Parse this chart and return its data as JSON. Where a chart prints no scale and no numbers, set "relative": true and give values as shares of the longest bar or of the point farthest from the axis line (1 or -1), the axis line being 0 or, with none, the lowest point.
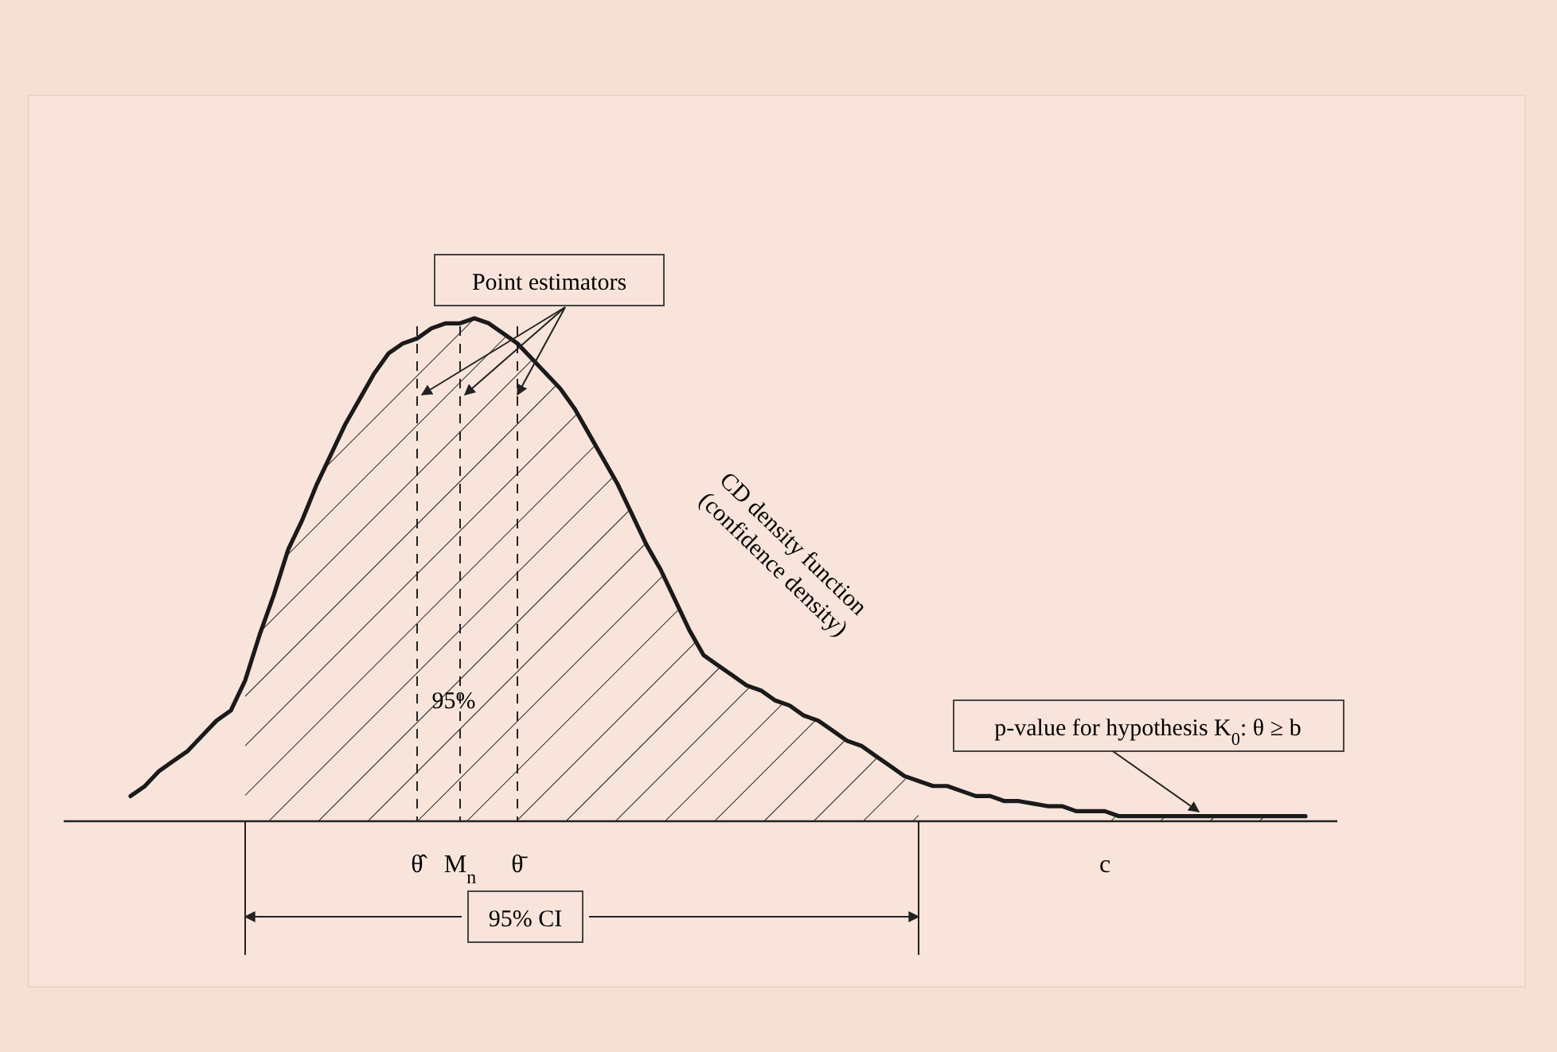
{
  "chart_data": {
    "type": "line",
    "relative": true,
    "categories": [
      null,
      null,
      null,
      null,
      null,
      null,
      null,
      null,
      null,
      null,
      null,
      null,
      null,
      null,
      null,
      null,
      null,
      null,
      null,
      null,
      "θ̂",
      null,
      null,
      "M$_{n}$",
      null,
      null,
      null,
      "θ̄",
      null,
      null,
      null,
      null,
      null,
      null,
      null,
      null,
      null,
      null,
      null,
      null,
      null,
      null,
      null,
      null,
      null,
      null,
      null,
      null,
      null,
      null,
      null,
      null,
      null,
      null,
      null,
      null,
      null,
      null,
      null,
      null,
      null,
      null,
      null,
      null,
      null,
      null,
      null,
      null,
      "c",
      null,
      null,
      null,
      null,
      null,
      null,
      null,
      null,
      null,
      null,
      null,
      null,
      null,
      null
    ],
    "series": [
      {
        "color": "#1a1a1a",
        "values": [
          0.05,
          0.07,
          0.1,
          0.12,
          0.14,
          0.17,
          0.2,
          0.22,
          0.28,
          0.37,
          0.45,
          0.54,
          0.6,
          0.67,
          0.73,
          0.79,
          0.84,
          0.89,
          0.93,
          0.95,
          0.96,
          0.98,
          0.99,
          0.99,
          1,
          0.99,
          0.97,
          0.95,
          0.92,
          0.89,
          0.86,
          0.82,
          0.77,
          0.72,
          0.67,
          0.61,
          0.55,
          0.5,
          0.44,
          0.38,
          0.33,
          0.31,
          0.29,
          0.27,
          0.26,
          0.24,
          0.23,
          0.21,
          0.2,
          0.18,
          0.16,
          0.15,
          0.13,
          0.11,
          0.09,
          0.08,
          0.07,
          0.07,
          0.06,
          0.05,
          0.05,
          0.04,
          0.04,
          0.035,
          0.03,
          0.03,
          0.02,
          0.02,
          0.02,
          0.01,
          0.01,
          0.01,
          0.01,
          0.01,
          0.01,
          0.01,
          0.01,
          0.01,
          0.01,
          0.01,
          0.01,
          0.01,
          0.01
        ]
      },
      {
        "type": "area",
        "color": "#222222",
        "values": [
          null,
          null,
          null,
          null,
          null,
          null,
          null,
          null,
          0.28,
          0.37,
          0.45,
          0.54,
          0.6,
          0.67,
          0.73,
          0.79,
          0.84,
          0.89,
          0.93,
          0.95,
          0.96,
          0.98,
          0.99,
          0.99,
          1,
          0.99,
          0.97,
          0.95,
          0.92,
          0.89,
          0.86,
          0.82,
          0.77,
          0.72,
          0.67,
          0.61,
          0.55,
          0.5,
          0.44,
          0.38,
          0.33,
          0.31,
          0.29,
          0.27,
          0.26,
          0.24,
          0.23,
          0.21,
          0.2,
          0.18,
          0.16,
          0.15,
          0.13,
          0.11,
          0.09,
          0.08,
          null,
          null,
          null,
          null,
          null,
          null,
          null,
          null,
          null,
          null,
          null,
          null,
          null,
          null,
          null,
          null,
          null,
          null,
          null,
          null,
          null,
          null,
          null,
          null,
          null,
          null,
          null
        ]
      },
      {
        "type": "area",
        "color": "#222222",
        "values": [
          null,
          null,
          null,
          null,
          null,
          null,
          null,
          null,
          null,
          null,
          null,
          null,
          null,
          null,
          null,
          null,
          null,
          null,
          null,
          null,
          null,
          null,
          null,
          null,
          null,
          null,
          null,
          null,
          null,
          null,
          null,
          null,
          null,
          null,
          null,
          null,
          null,
          null,
          null,
          null,
          null,
          null,
          null,
          null,
          null,
          null,
          null,
          null,
          null,
          null,
          null,
          null,
          null,
          null,
          null,
          null,
          null,
          null,
          null,
          null,
          null,
          null,
          null,
          null,
          null,
          null,
          null,
          null,
          0.02,
          0.01,
          0.01,
          0.01,
          0.01,
          0.01,
          0.01,
          0.01,
          0.01,
          0.01,
          0.01,
          0.01,
          0.01,
          0.01,
          0.01
        ]
      }
    ],
    "ref_lines": [
      {
        "axis": "x",
        "value": "θ̂",
        "line_style": "dashed"
      },
      {
        "axis": "x",
        "value": "M$_{n}$",
        "line_style": "dashed"
      },
      {
        "axis": "x",
        "value": "θ̄",
        "line_style": "dashed"
      }
    ],
    "annotations": [
      "Point estimators",
      "95%",
      "CD density function (confidence density)",
      "95% CI",
      "p-value for hypothesis K$_{0}$: θ ≥ b"
    ]
  }
}
